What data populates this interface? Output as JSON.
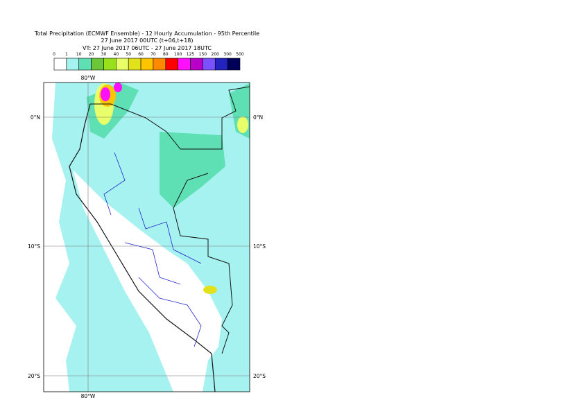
{
  "header": {
    "lines": [
      "Total Precipitation (ECMWF Ensemble) - 12 Hourly Accumulation - 95th Percentile",
      "27 June 2017 00UTC (t+06,t+18)",
      "VT: 27 June 2017 06UTC - 27 June 2017 18UTC"
    ]
  },
  "legend": {
    "levels": [
      0,
      1,
      10,
      20,
      30,
      40,
      50,
      60,
      70,
      80,
      100,
      125,
      150,
      200,
      300,
      500
    ],
    "colors": [
      "#ffffff",
      "#a6f2f0",
      "#5fe0b4",
      "#6cc63a",
      "#98e01c",
      "#e8ff6a",
      "#e2e21c",
      "#ffc400",
      "#ff8a00",
      "#ff0000",
      "#ff10ff",
      "#b800c8",
      "#7a50ff",
      "#2323c0",
      "#00005a"
    ]
  },
  "map": {
    "lon_top": "80°W",
    "lon_bottom": "80°W",
    "lat_left": [
      "0°N",
      "10°S",
      "20°S"
    ],
    "lat_right": [
      "0°N",
      "10°S",
      "20°S"
    ]
  }
}
